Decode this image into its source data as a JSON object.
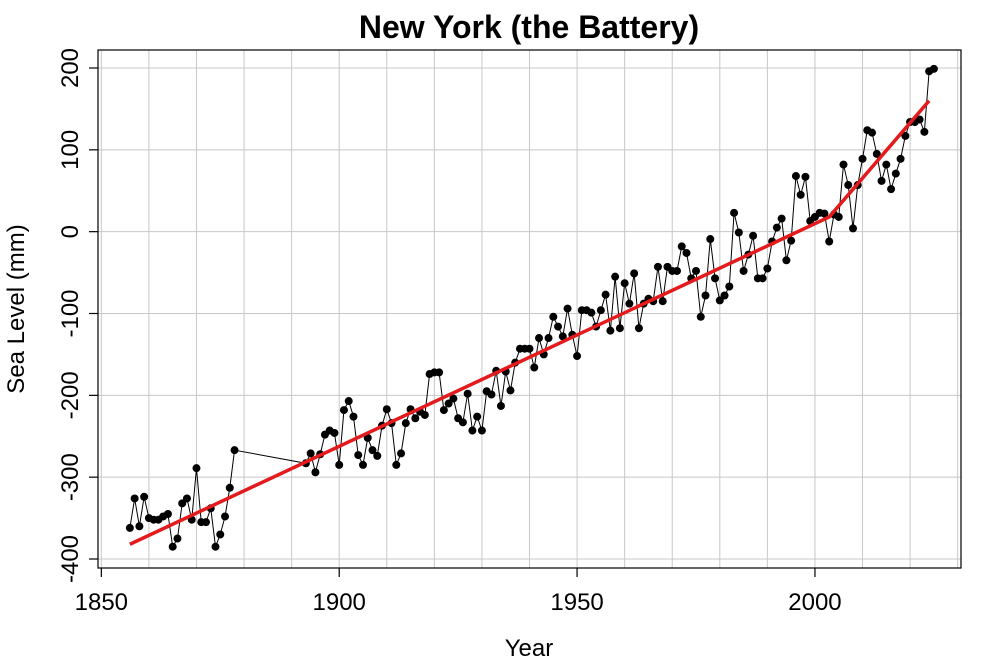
{
  "chart_data": {
    "type": "line",
    "title": "New York (the Battery)",
    "xlabel": "Year",
    "ylabel": "Sea Level (mm)",
    "x": [
      1856,
      1857,
      1858,
      1859,
      1860,
      1861,
      1862,
      1863,
      1864,
      1865,
      1866,
      1867,
      1868,
      1869,
      1870,
      1871,
      1872,
      1873,
      1874,
      1875,
      1876,
      1877,
      1878,
      1893,
      1894,
      1895,
      1896,
      1897,
      1898,
      1899,
      1900,
      1901,
      1902,
      1903,
      1904,
      1905,
      1906,
      1907,
      1908,
      1909,
      1910,
      1911,
      1912,
      1913,
      1914,
      1915,
      1916,
      1917,
      1918,
      1919,
      1920,
      1921,
      1922,
      1923,
      1924,
      1925,
      1926,
      1927,
      1928,
      1929,
      1930,
      1931,
      1932,
      1933,
      1934,
      1935,
      1936,
      1937,
      1938,
      1939,
      1940,
      1941,
      1942,
      1943,
      1944,
      1945,
      1946,
      1947,
      1948,
      1949,
      1950,
      1951,
      1952,
      1953,
      1954,
      1955,
      1956,
      1957,
      1958,
      1959,
      1960,
      1961,
      1962,
      1963,
      1964,
      1965,
      1966,
      1967,
      1968,
      1969,
      1970,
      1971,
      1972,
      1973,
      1974,
      1975,
      1976,
      1977,
      1978,
      1979,
      1980,
      1981,
      1982,
      1983,
      1984,
      1985,
      1986,
      1987,
      1988,
      1989,
      1990,
      1991,
      1992,
      1993,
      1994,
      1995,
      1996,
      1997,
      1998,
      1999,
      2000,
      2001,
      2002,
      2003,
      2004,
      2005,
      2006,
      2007,
      2008,
      2009,
      2010,
      2011,
      2012,
      2013,
      2014,
      2015,
      2016,
      2017,
      2018,
      2019,
      2020,
      2021,
      2022,
      2023,
      2024,
      2025
    ],
    "values": [
      -362,
      -326,
      -360,
      -324,
      -350,
      -352,
      -352,
      -348,
      -345,
      -385,
      -375,
      -332,
      -326,
      -352,
      -289,
      -355,
      -355,
      -338,
      -385,
      -370,
      -348,
      -313,
      -267,
      -283,
      -271,
      -294,
      -272,
      -248,
      -243,
      -246,
      -285,
      -218,
      -207,
      -226,
      -273,
      -285,
      -252,
      -267,
      -274,
      -237,
      -217,
      -234,
      -285,
      -271,
      -234,
      -217,
      -228,
      -220,
      -224,
      -174,
      -172,
      -172,
      -218,
      -210,
      -204,
      -228,
      -233,
      -198,
      -243,
      -226,
      -243,
      -195,
      -199,
      -170,
      -213,
      -171,
      -194,
      -160,
      -143,
      -143,
      -143,
      -166,
      -130,
      -150,
      -130,
      -104,
      -116,
      -128,
      -94,
      -126,
      -152,
      -96,
      -96,
      -99,
      -116,
      -96,
      -77,
      -121,
      -55,
      -118,
      -63,
      -88,
      -51,
      -118,
      -88,
      -82,
      -85,
      -43,
      -85,
      -43,
      -48,
      -48,
      -18,
      -26,
      -57,
      -48,
      -104,
      -78,
      -9,
      -57,
      -84,
      -78,
      -67,
      23,
      -1,
      -48,
      -28,
      -5,
      -57,
      -57,
      -45,
      -12,
      5,
      16,
      -35,
      -11,
      68,
      45,
      67,
      13,
      18,
      23,
      22,
      -12,
      21,
      18,
      82,
      57,
      4,
      57,
      89,
      124,
      121,
      95,
      62,
      82,
      52,
      71,
      89,
      117,
      134,
      134,
      137,
      122,
      196,
      199
    ],
    "color": "#000000",
    "trend": {
      "x": [
        1856,
        2003,
        2024
      ],
      "values": [
        -382,
        18,
        160
      ],
      "color": "#e41a1c"
    },
    "xlim": [
      1849.3,
      2030.7
    ],
    "ylim": [
      -411,
      222
    ],
    "xticks": [
      1850,
      1900,
      1950,
      2000
    ],
    "yticks": [
      -400,
      -300,
      -200,
      -100,
      0,
      100,
      200
    ],
    "xgrid": [
      1850,
      1860,
      1870,
      1880,
      1890,
      1900,
      1910,
      1920,
      1930,
      1940,
      1950,
      1960,
      1970,
      1980,
      1990,
      2000,
      2010,
      2020,
      2030
    ],
    "grid": true
  }
}
